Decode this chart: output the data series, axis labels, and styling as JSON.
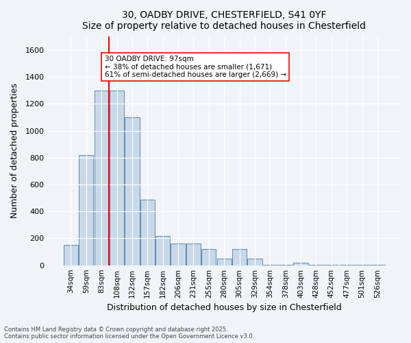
{
  "title1": "30, OADBY DRIVE, CHESTERFIELD, S41 0YF",
  "title2": "Size of property relative to detached houses in Chesterfield",
  "xlabel": "Distribution of detached houses by size in Chesterfield",
  "ylabel": "Number of detached properties",
  "categories": [
    "34sqm",
    "59sqm",
    "83sqm",
    "108sqm",
    "132sqm",
    "157sqm",
    "182sqm",
    "206sqm",
    "231sqm",
    "255sqm",
    "280sqm",
    "305sqm",
    "329sqm",
    "354sqm",
    "378sqm",
    "403sqm",
    "428sqm",
    "452sqm",
    "477sqm",
    "501sqm",
    "526sqm"
  ],
  "values": [
    150,
    820,
    1300,
    1300,
    1100,
    490,
    220,
    160,
    160,
    120,
    50,
    120,
    50,
    5,
    5,
    20,
    5,
    5,
    5,
    5,
    2
  ],
  "bar_color": "#c8d8e8",
  "bar_edge_color": "#5a8ab0",
  "vline_x": 3,
  "vline_color": "red",
  "annotation_text": "30 OADBY DRIVE: 97sqm\n← 38% of detached houses are smaller (1,671)\n61% of semi-detached houses are larger (2,669) →",
  "annotation_box_color": "white",
  "annotation_box_edge": "red",
  "ylim": [
    0,
    1700
  ],
  "yticks": [
    0,
    200,
    400,
    600,
    800,
    1000,
    1200,
    1400,
    1600
  ],
  "footer1": "Contains HM Land Registry data © Crown copyright and database right 2025.",
  "footer2": "Contains public sector information licensed under the Open Government Licence v3.0.",
  "bg_color": "#f0f4f8",
  "plot_bg_color": "#f0f4f8"
}
